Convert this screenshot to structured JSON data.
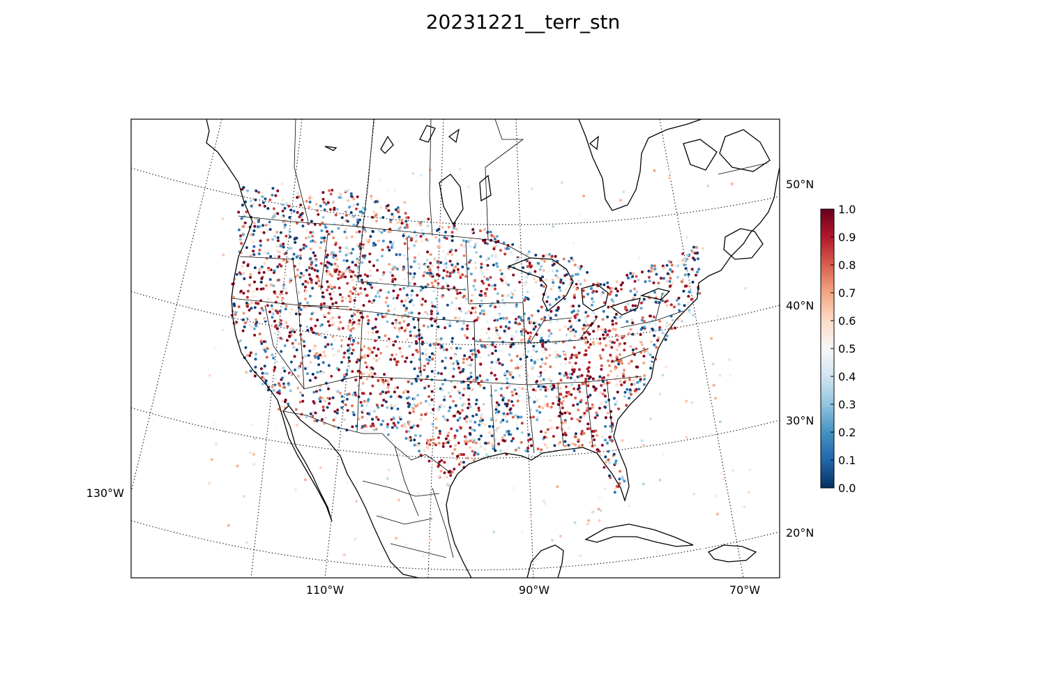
{
  "title": "20231221__terr_stn",
  "map": {
    "latitude_labels": [
      "50°N",
      "40°N",
      "30°N",
      "20°N"
    ],
    "longitude_labels": [
      "130°W",
      "110°W",
      "90°W",
      "70°W"
    ]
  },
  "colorbar": {
    "colormap": "RdBu_r",
    "min": 0.0,
    "max": 1.0,
    "tick_labels": [
      "0.0",
      "0.1",
      "0.2",
      "0.3",
      "0.4",
      "0.5",
      "0.6",
      "0.7",
      "0.8",
      "0.9",
      "1.0"
    ],
    "colors": [
      "#053061",
      "#2166ac",
      "#4393c3",
      "#92c5de",
      "#d1e5f0",
      "#f7f7f7",
      "#fddbc7",
      "#f4a582",
      "#d6604d",
      "#b2182b",
      "#67001f"
    ]
  }
}
